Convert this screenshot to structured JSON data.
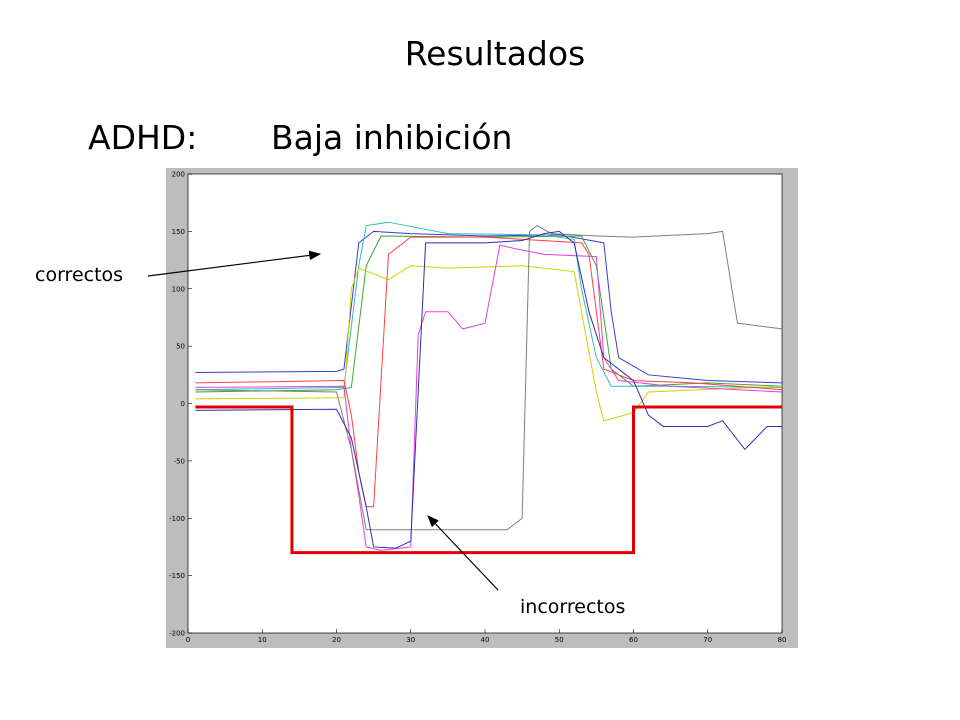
{
  "slide": {
    "title": "Resultados",
    "subtitle_left": "ADHD:",
    "subtitle_right": "Baja inhibición",
    "annotation_correct": "correctos",
    "annotation_incorrect": "incorrectos"
  },
  "chart_data": {
    "type": "line",
    "xlim": [
      0,
      80
    ],
    "ylim": [
      -200,
      200
    ],
    "x_ticks": [
      0,
      10,
      20,
      30,
      40,
      50,
      60,
      70,
      80
    ],
    "y_ticks": [
      200,
      150,
      100,
      50,
      0,
      -50,
      -100,
      -150,
      -200
    ],
    "grid": false,
    "colors": {
      "background": "#bdbdbd",
      "stimulus": "#e00000"
    },
    "stimulus": {
      "color": "#e00000",
      "points": [
        [
          1,
          -3
        ],
        [
          14,
          -3
        ],
        [
          14,
          -130
        ],
        [
          60,
          -130
        ],
        [
          60,
          -3
        ],
        [
          80,
          -3
        ]
      ]
    },
    "series": [
      {
        "color": "#3a3acf",
        "points": [
          [
            1,
            27
          ],
          [
            20,
            28
          ],
          [
            21,
            30
          ],
          [
            23,
            140
          ],
          [
            25,
            150
          ],
          [
            30,
            148
          ],
          [
            40,
            146
          ],
          [
            50,
            147
          ],
          [
            56,
            140
          ],
          [
            57,
            80
          ],
          [
            58,
            40
          ],
          [
            62,
            25
          ],
          [
            70,
            20
          ],
          [
            80,
            18
          ]
        ]
      },
      {
        "color": "#3aa63a",
        "points": [
          [
            1,
            10
          ],
          [
            20,
            12
          ],
          [
            22,
            14
          ],
          [
            24,
            120
          ],
          [
            26,
            146
          ],
          [
            40,
            145
          ],
          [
            53,
            146
          ],
          [
            55,
            120
          ],
          [
            57,
            30
          ],
          [
            60,
            15
          ],
          [
            70,
            18
          ],
          [
            80,
            15
          ]
        ]
      },
      {
        "color": "#33bbbb",
        "points": [
          [
            1,
            12
          ],
          [
            21,
            14
          ],
          [
            23,
            120
          ],
          [
            24,
            155
          ],
          [
            27,
            158
          ],
          [
            35,
            148
          ],
          [
            48,
            147
          ],
          [
            52,
            143
          ],
          [
            53,
            100
          ],
          [
            55,
            40
          ],
          [
            57,
            15
          ],
          [
            65,
            15
          ],
          [
            80,
            14
          ]
        ]
      },
      {
        "color": "#d4d000",
        "points": [
          [
            1,
            4
          ],
          [
            21,
            5
          ],
          [
            22,
            100
          ],
          [
            23,
            118
          ],
          [
            27,
            108
          ],
          [
            30,
            120
          ],
          [
            35,
            118
          ],
          [
            45,
            120
          ],
          [
            52,
            115
          ],
          [
            55,
            10
          ],
          [
            56,
            -15
          ],
          [
            60,
            -8
          ],
          [
            62,
            10
          ],
          [
            80,
            15
          ]
        ]
      },
      {
        "color": "#e040e0",
        "points": [
          [
            1,
            14
          ],
          [
            21,
            15
          ],
          [
            22,
            -40
          ],
          [
            23,
            -80
          ],
          [
            24,
            -125
          ],
          [
            26,
            -128
          ],
          [
            30,
            -125
          ],
          [
            31,
            60
          ],
          [
            32,
            80
          ],
          [
            35,
            80
          ],
          [
            37,
            65
          ],
          [
            40,
            70
          ],
          [
            42,
            138
          ],
          [
            44,
            135
          ],
          [
            48,
            130
          ],
          [
            55,
            128
          ],
          [
            56,
            40
          ],
          [
            58,
            20
          ],
          [
            65,
            15
          ],
          [
            80,
            10
          ]
        ]
      },
      {
        "color": "#ff4040",
        "points": [
          [
            1,
            18
          ],
          [
            21,
            20
          ],
          [
            22,
            -10
          ],
          [
            23,
            -60
          ],
          [
            24,
            -90
          ],
          [
            25,
            -90
          ],
          [
            27,
            130
          ],
          [
            30,
            145
          ],
          [
            40,
            145
          ],
          [
            53,
            140
          ],
          [
            54,
            130
          ],
          [
            56,
            30
          ],
          [
            60,
            20
          ],
          [
            68,
            18
          ],
          [
            80,
            12
          ]
        ]
      },
      {
        "color": "#808080",
        "points": [
          [
            1,
            12
          ],
          [
            20,
            10
          ],
          [
            22,
            -40
          ],
          [
            24,
            -110
          ],
          [
            30,
            -110
          ],
          [
            43,
            -110
          ],
          [
            45,
            -100
          ],
          [
            46,
            150
          ],
          [
            47,
            155
          ],
          [
            49,
            148
          ],
          [
            55,
            146
          ],
          [
            60,
            145
          ],
          [
            70,
            148
          ],
          [
            72,
            150
          ],
          [
            74,
            70
          ],
          [
            80,
            65
          ]
        ]
      },
      {
        "color": "#2f2fb0",
        "points": [
          [
            1,
            -6
          ],
          [
            20,
            -5
          ],
          [
            22,
            -30
          ],
          [
            24,
            -90
          ],
          [
            25,
            -125
          ],
          [
            28,
            -126
          ],
          [
            30,
            -120
          ],
          [
            32,
            140
          ],
          [
            40,
            140
          ],
          [
            45,
            142
          ],
          [
            48,
            148
          ],
          [
            50,
            150
          ],
          [
            52,
            140
          ],
          [
            54,
            80
          ],
          [
            56,
            40
          ],
          [
            60,
            20
          ],
          [
            62,
            -10
          ],
          [
            64,
            -20
          ],
          [
            70,
            -20
          ],
          [
            72,
            -15
          ],
          [
            75,
            -40
          ],
          [
            78,
            -20
          ],
          [
            80,
            -20
          ]
        ]
      }
    ]
  }
}
